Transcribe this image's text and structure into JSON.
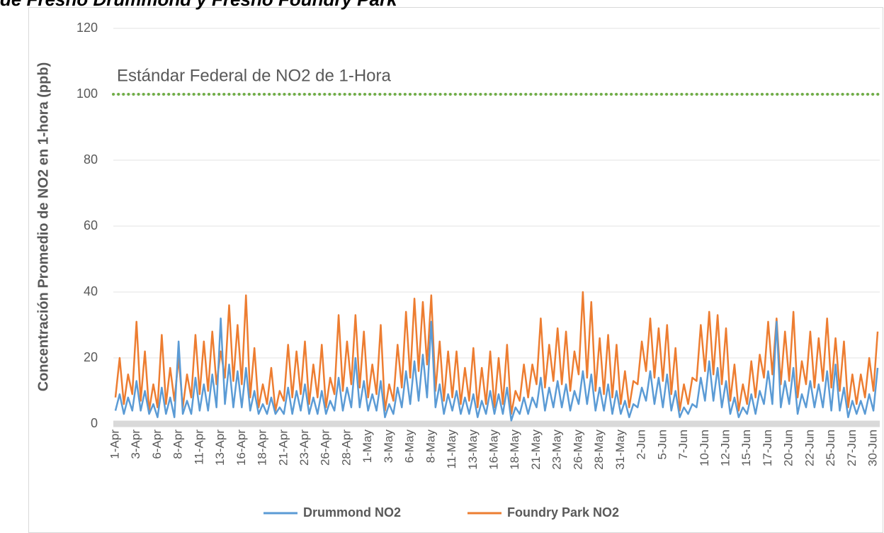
{
  "chart_data": {
    "type": "line",
    "title": "de Fresno Drummond y Fresno Foundry Park",
    "y_label": "Concentración Promedio de NO2 en 1-hora (ppb)",
    "reference_line": {
      "value": 100,
      "label": "Estándar Federal de NO2 de 1-Hora",
      "color": "#70ad47"
    },
    "ylim": [
      0,
      120
    ],
    "yticks": [
      0,
      20,
      40,
      60,
      80,
      100,
      120
    ],
    "grid": true,
    "legend": "bottom",
    "categories": [
      "1-Apr",
      null,
      null,
      null,
      null,
      "3-Apr",
      null,
      null,
      null,
      null,
      "6-Apr",
      null,
      null,
      null,
      null,
      "8-Apr",
      null,
      null,
      null,
      null,
      "11-Apr",
      null,
      null,
      null,
      null,
      "13-Apr",
      null,
      null,
      null,
      null,
      "16-Apr",
      null,
      null,
      null,
      null,
      "18-Apr",
      null,
      null,
      null,
      null,
      "21-Apr",
      null,
      null,
      null,
      null,
      "23-Apr",
      null,
      null,
      null,
      null,
      "26-Apr",
      null,
      null,
      null,
      null,
      "28-Apr",
      null,
      null,
      null,
      null,
      "1-May",
      null,
      null,
      null,
      null,
      "3-May",
      null,
      null,
      null,
      null,
      "6-May",
      null,
      null,
      null,
      null,
      "8-May",
      null,
      null,
      null,
      null,
      "11-May",
      null,
      null,
      null,
      null,
      "13-May",
      null,
      null,
      null,
      null,
      "16-May",
      null,
      null,
      null,
      null,
      "18-May",
      null,
      null,
      null,
      null,
      "21-May",
      null,
      null,
      null,
      null,
      "23-May",
      null,
      null,
      null,
      null,
      "26-May",
      null,
      null,
      null,
      null,
      "28-May",
      null,
      null,
      null,
      null,
      "31-May",
      null,
      null,
      null,
      null,
      "2-Jun",
      null,
      null,
      null,
      null,
      "5-Jun",
      null,
      null,
      null,
      null,
      "7-Jun",
      null,
      null,
      null,
      null,
      "10-Jun",
      null,
      null,
      null,
      null,
      "12-Jun",
      null,
      null,
      null,
      null,
      "15-Jun",
      null,
      null,
      null,
      null,
      "17-Jun",
      null,
      null,
      null,
      null,
      "20-Jun",
      null,
      null,
      null,
      null,
      "22-Jun",
      null,
      null,
      null,
      null,
      "25-Jun",
      null,
      null,
      null,
      null,
      "27-Jun",
      null,
      null,
      null,
      null,
      "30-Jun",
      null
    ],
    "series": [
      {
        "name": "Drummond NO2",
        "color": "#5b9bd5",
        "values": [
          4,
          9,
          3,
          8,
          4,
          13,
          4,
          10,
          3,
          6,
          2,
          11,
          3,
          8,
          2,
          25,
          3,
          7,
          3,
          14,
          4,
          12,
          4,
          15,
          5,
          32,
          6,
          18,
          5,
          16,
          5,
          17,
          4,
          10,
          3,
          6,
          3,
          8,
          3,
          5,
          3,
          11,
          3,
          10,
          4,
          12,
          3,
          8,
          3,
          10,
          3,
          7,
          4,
          14,
          4,
          11,
          5,
          20,
          5,
          13,
          4,
          9,
          4,
          13,
          2,
          6,
          3,
          11,
          5,
          16,
          6,
          19,
          7,
          21,
          8,
          31,
          5,
          12,
          3,
          9,
          4,
          10,
          3,
          8,
          3,
          9,
          2,
          7,
          3,
          10,
          3,
          9,
          3,
          11,
          1,
          5,
          3,
          8,
          3,
          8,
          5,
          14,
          4,
          11,
          5,
          13,
          5,
          12,
          4,
          10,
          6,
          16,
          6,
          15,
          4,
          11,
          4,
          12,
          3,
          10,
          3,
          7,
          2,
          6,
          5,
          11,
          7,
          16,
          6,
          14,
          5,
          15,
          4,
          10,
          2,
          5,
          3,
          6,
          5,
          14,
          7,
          19,
          7,
          17,
          5,
          13,
          3,
          8,
          2,
          5,
          3,
          9,
          3,
          10,
          6,
          16,
          6,
          31,
          5,
          13,
          6,
          17,
          3,
          9,
          5,
          13,
          5,
          12,
          5,
          16,
          4,
          18,
          4,
          11,
          2,
          7,
          3,
          7,
          3,
          9,
          4,
          17
        ]
      },
      {
        "name": "Foundry Park NO2",
        "color": "#ed7d31",
        "values": [
          8,
          20,
          6,
          15,
          9,
          31,
          7,
          22,
          4,
          12,
          5,
          27,
          6,
          17,
          7,
          20,
          5,
          15,
          8,
          27,
          9,
          25,
          10,
          28,
          12,
          22,
          14,
          36,
          13,
          30,
          12,
          39,
          8,
          23,
          5,
          12,
          6,
          17,
          4,
          10,
          7,
          24,
          8,
          22,
          9,
          25,
          6,
          18,
          8,
          24,
          5,
          14,
          9,
          33,
          10,
          25,
          12,
          33,
          11,
          28,
          8,
          18,
          9,
          30,
          4,
          12,
          7,
          24,
          11,
          34,
          14,
          38,
          16,
          37,
          18,
          39,
          10,
          25,
          7,
          22,
          8,
          22,
          6,
          17,
          7,
          23,
          5,
          17,
          6,
          22,
          5,
          20,
          6,
          24,
          3,
          10,
          7,
          18,
          8,
          18,
          12,
          32,
          11,
          24,
          13,
          29,
          12,
          28,
          10,
          22,
          15,
          40,
          14,
          37,
          10,
          26,
          9,
          27,
          8,
          24,
          6,
          16,
          5,
          13,
          12,
          25,
          16,
          32,
          14,
          29,
          13,
          30,
          9,
          23,
          4,
          12,
          6,
          14,
          13,
          30,
          16,
          34,
          15,
          33,
          12,
          29,
          7,
          18,
          4,
          12,
          6,
          19,
          8,
          21,
          14,
          31,
          15,
          32,
          12,
          28,
          13,
          34,
          8,
          19,
          12,
          28,
          11,
          26,
          13,
          32,
          11,
          26,
          10,
          25,
          5,
          15,
          6,
          15,
          8,
          20,
          10,
          28
        ]
      }
    ]
  }
}
